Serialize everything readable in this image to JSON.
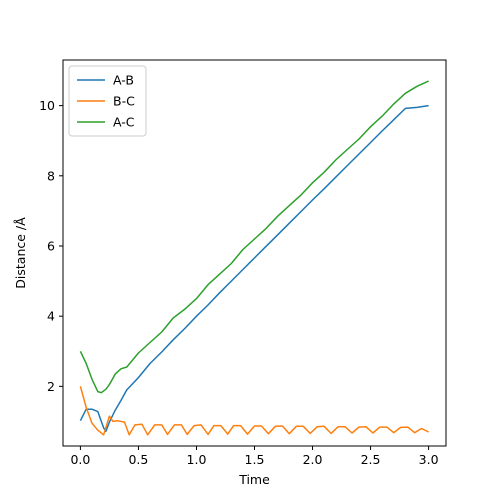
{
  "chart_data": {
    "type": "line",
    "title": "",
    "xlabel": "Time",
    "ylabel": "Distance /Å",
    "xlim": [
      -0.15,
      3.15
    ],
    "ylim": [
      0.3,
      11.3
    ],
    "xticks": [
      0.0,
      0.5,
      1.0,
      1.5,
      2.0,
      2.5,
      3.0
    ],
    "xtick_labels": [
      "0.0",
      "0.5",
      "1.0",
      "1.5",
      "2.0",
      "2.5",
      "3.0"
    ],
    "yticks": [
      2,
      4,
      6,
      8,
      10
    ],
    "ytick_labels": [
      "2",
      "4",
      "6",
      "8",
      "10"
    ],
    "grid": false,
    "legend_position": "upper-left",
    "series": [
      {
        "name": "A-B",
        "color": "#1f77b4",
        "x": [
          0.0,
          0.05,
          0.1,
          0.15,
          0.2,
          0.22,
          0.25,
          0.3,
          0.35,
          0.4,
          0.5,
          0.6,
          0.7,
          0.8,
          0.9,
          1.0,
          1.1,
          1.2,
          1.3,
          1.4,
          1.5,
          1.6,
          1.7,
          1.8,
          1.9,
          2.0,
          2.1,
          2.2,
          2.3,
          2.4,
          2.5,
          2.6,
          2.7,
          2.8,
          2.9,
          3.0
        ],
        "y": [
          1.02,
          1.35,
          1.35,
          1.28,
          0.82,
          0.72,
          0.98,
          1.32,
          1.6,
          1.9,
          2.25,
          2.65,
          2.98,
          3.33,
          3.65,
          4.0,
          4.32,
          4.67,
          5.0,
          5.33,
          5.66,
          5.99,
          6.32,
          6.65,
          6.98,
          7.31,
          7.63,
          7.96,
          8.29,
          8.62,
          8.95,
          9.28,
          9.6,
          9.92,
          9.95,
          10.0
        ]
      },
      {
        "name": "B-C",
        "color": "#ff7f0e",
        "x": [
          0.0,
          0.05,
          0.1,
          0.15,
          0.2,
          0.25,
          0.28,
          0.32,
          0.38,
          0.42,
          0.47,
          0.53,
          0.58,
          0.64,
          0.7,
          0.75,
          0.81,
          0.87,
          0.92,
          0.98,
          1.04,
          1.1,
          1.15,
          1.21,
          1.27,
          1.32,
          1.38,
          1.44,
          1.5,
          1.56,
          1.62,
          1.68,
          1.74,
          1.8,
          1.86,
          1.92,
          1.98,
          2.04,
          2.1,
          2.16,
          2.22,
          2.28,
          2.34,
          2.4,
          2.46,
          2.52,
          2.58,
          2.64,
          2.7,
          2.76,
          2.82,
          2.88,
          2.94,
          3.0
        ],
        "y": [
          2.0,
          1.4,
          0.95,
          0.75,
          0.62,
          1.15,
          1.0,
          1.02,
          0.98,
          0.62,
          0.9,
          0.92,
          0.62,
          0.9,
          0.9,
          0.63,
          0.9,
          0.9,
          0.63,
          0.88,
          0.9,
          0.63,
          0.88,
          0.88,
          0.64,
          0.88,
          0.88,
          0.64,
          0.87,
          0.87,
          0.65,
          0.86,
          0.87,
          0.65,
          0.86,
          0.86,
          0.66,
          0.85,
          0.86,
          0.66,
          0.85,
          0.85,
          0.67,
          0.84,
          0.85,
          0.67,
          0.84,
          0.84,
          0.68,
          0.83,
          0.84,
          0.68,
          0.8,
          0.7
        ]
      },
      {
        "name": "A-C",
        "color": "#2ca02c",
        "x": [
          0.0,
          0.05,
          0.1,
          0.15,
          0.18,
          0.22,
          0.25,
          0.3,
          0.35,
          0.4,
          0.5,
          0.6,
          0.7,
          0.8,
          0.9,
          1.0,
          1.1,
          1.2,
          1.3,
          1.4,
          1.5,
          1.6,
          1.7,
          1.8,
          1.9,
          2.0,
          2.1,
          2.2,
          2.3,
          2.4,
          2.5,
          2.6,
          2.7,
          2.8,
          2.9,
          3.0
        ],
        "y": [
          3.0,
          2.65,
          2.2,
          1.85,
          1.82,
          1.92,
          2.05,
          2.35,
          2.5,
          2.55,
          2.95,
          3.25,
          3.55,
          3.95,
          4.2,
          4.5,
          4.9,
          5.2,
          5.5,
          5.9,
          6.2,
          6.5,
          6.85,
          7.15,
          7.45,
          7.8,
          8.1,
          8.45,
          8.75,
          9.05,
          9.4,
          9.7,
          10.05,
          10.35,
          10.55,
          10.7
        ]
      }
    ]
  }
}
